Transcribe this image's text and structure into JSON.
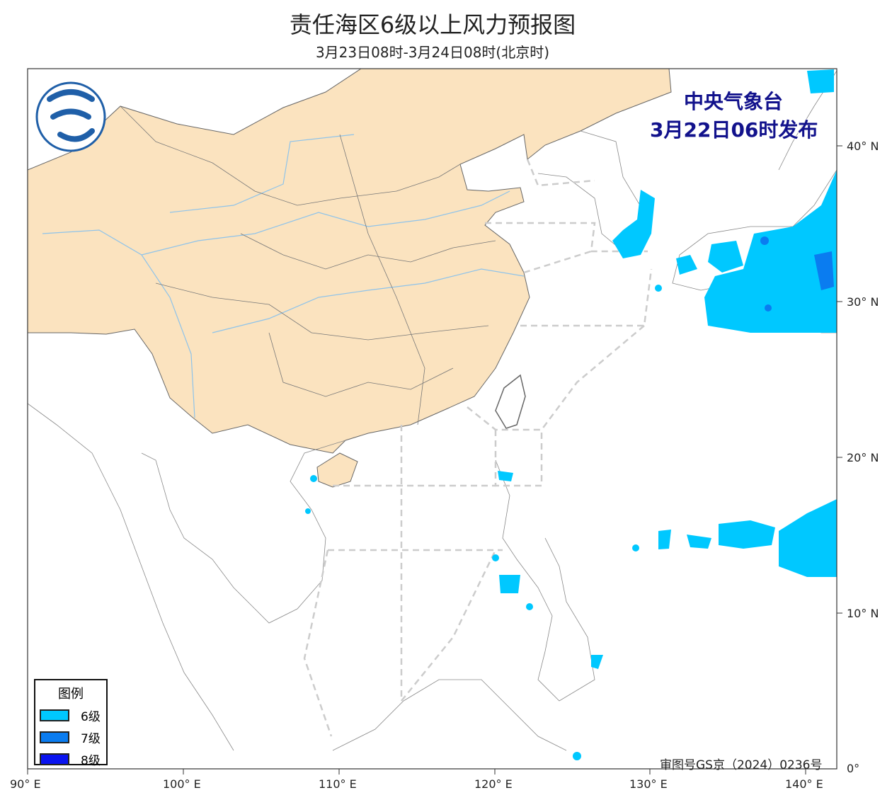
{
  "header": {
    "title": "责任海区6级以上风力预报图",
    "subtitle": "3月23日08时-3月24日08时(北京时)"
  },
  "publisher": {
    "name": "中央气象台",
    "issued": "3月22日06时发布",
    "color": "#12128c"
  },
  "axes": {
    "lon_labels": [
      "90° E",
      "100° E",
      "110° E",
      "120° E",
      "130° E",
      "140° E"
    ],
    "lat_labels": [
      "40° N",
      "30° N",
      "20° N",
      "10° N",
      "0°"
    ]
  },
  "legend": {
    "title": "图例",
    "items": [
      {
        "label": "6级",
        "color": "#00c8ff"
      },
      {
        "label": "7级",
        "color": "#0a7cf0"
      },
      {
        "label": "8级",
        "color": "#0a14f0"
      }
    ]
  },
  "approval": "审图号GS京（2024）0236号",
  "colors": {
    "china_land": "#fbe3bf",
    "sea": "#ffffff",
    "zone_line": "#cccccc"
  }
}
